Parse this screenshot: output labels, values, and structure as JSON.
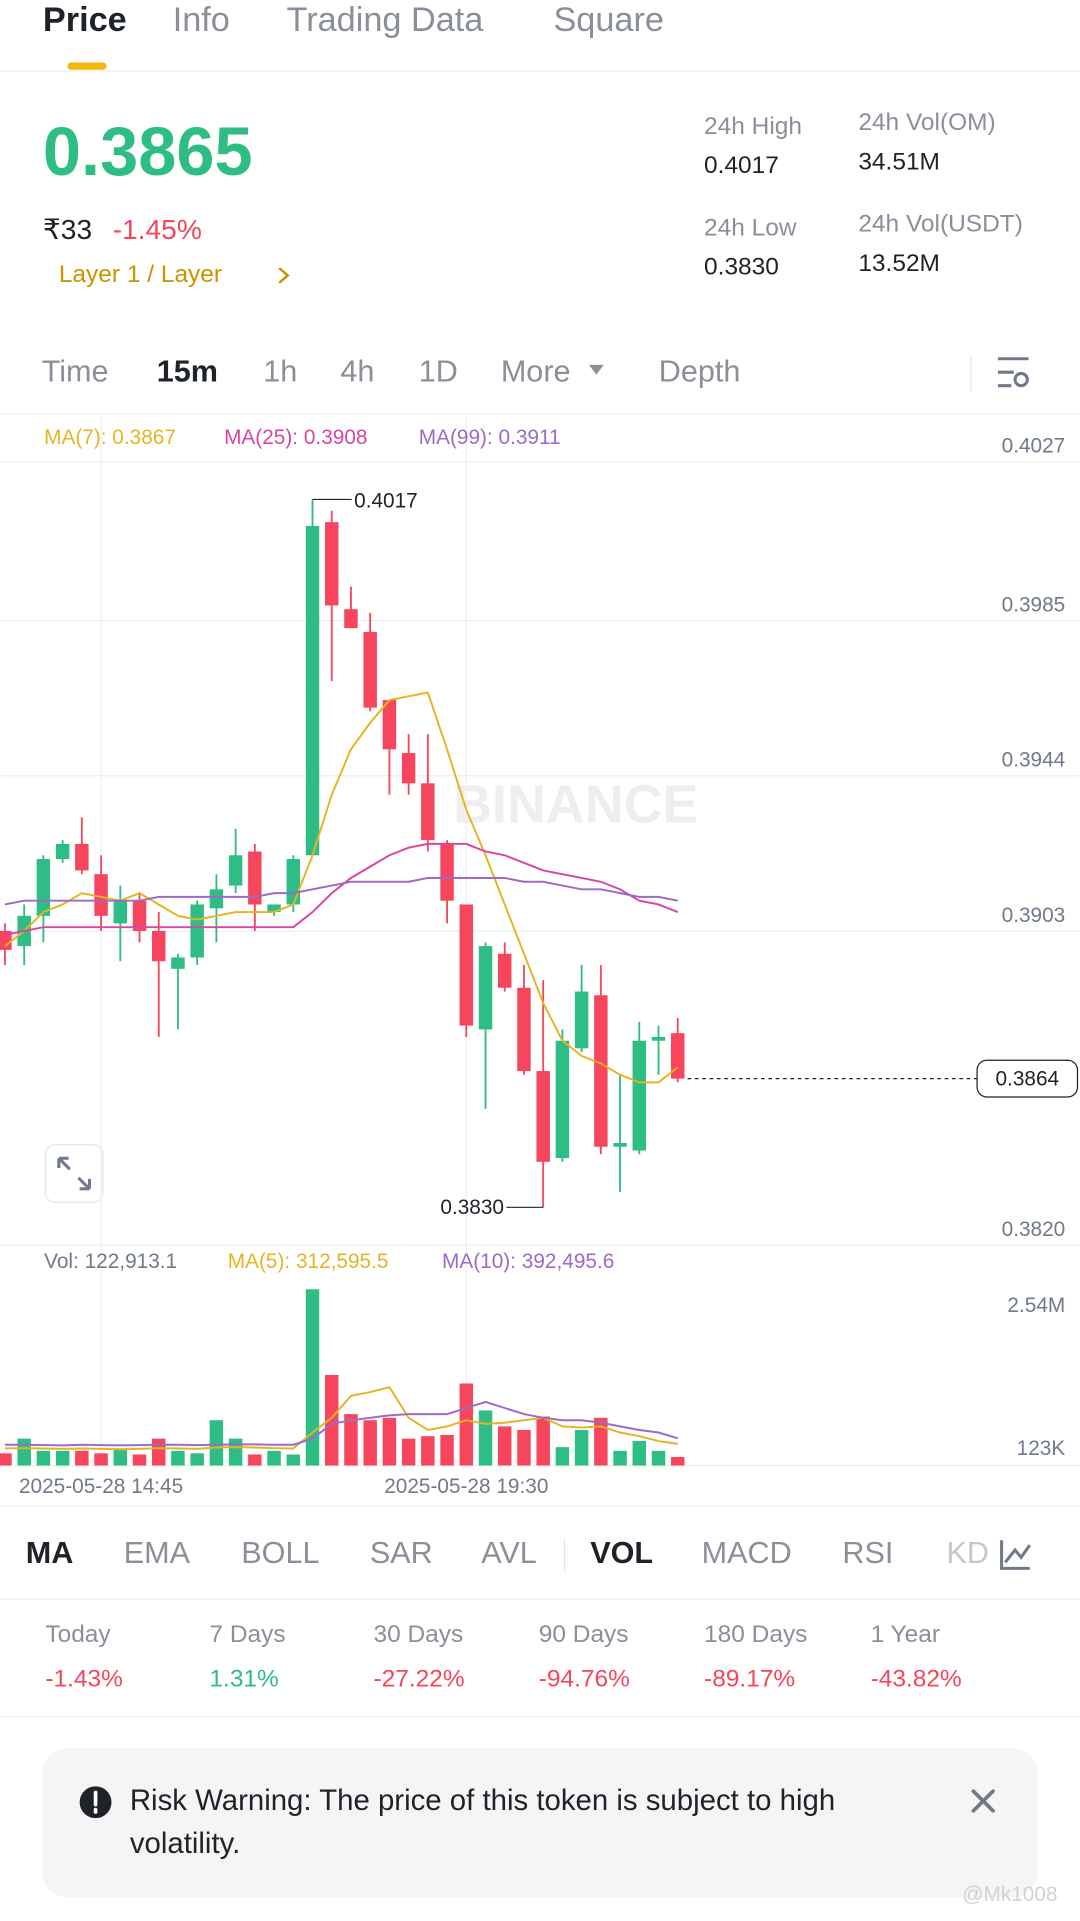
{
  "tabs": [
    "Price",
    "Info",
    "Trading Data",
    "Square"
  ],
  "ticker": {
    "price": "0.3865",
    "fiat": "₹33",
    "change": "-1.45%",
    "tags": "Layer 1 / Layer"
  },
  "stats": [
    {
      "label": "24h High",
      "value": "0.4017"
    },
    {
      "label": "24h Vol(OM)",
      "value": "34.51M"
    },
    {
      "label": "24h Low",
      "value": "0.3830"
    },
    {
      "label": "24h Vol(USDT)",
      "value": "13.52M"
    }
  ],
  "intervals": [
    "Time",
    "15m",
    "1h",
    "4h",
    "1D",
    "More",
    "Depth"
  ],
  "watermark": "BINANCE",
  "chart_data": [
    {
      "type": "candlestick",
      "categories": [
        null,
        null,
        null,
        null,
        null,
        "2025-05-28 14:45",
        null,
        null,
        null,
        null,
        null,
        null,
        null,
        null,
        null,
        null,
        null,
        null,
        null,
        null,
        null,
        null,
        null,
        null,
        "2025-05-28 19:30",
        null,
        null,
        null,
        null,
        null,
        null,
        null,
        null,
        null,
        null,
        null
      ],
      "open": [
        0.3903,
        0.3899,
        0.3907,
        0.3922,
        0.3926,
        0.3918,
        0.3905,
        0.3911,
        0.3903,
        0.3893,
        0.3896,
        0.3909,
        0.3915,
        0.3924,
        0.3908,
        0.391,
        0.3923,
        0.4011,
        0.3988,
        0.3982,
        0.3964,
        0.395,
        0.3942,
        0.3926,
        0.391,
        0.3877,
        0.3897,
        0.3888,
        0.3866,
        0.3843,
        0.3872,
        0.3886,
        0.3846,
        0.3845,
        0.3874,
        0.3876
      ],
      "high": [
        0.3905,
        0.391,
        0.3923,
        0.3927,
        0.3933,
        0.3923,
        0.3915,
        0.3913,
        0.3908,
        0.3897,
        0.3911,
        0.3918,
        0.393,
        0.3926,
        0.391,
        0.3923,
        0.4017,
        0.4014,
        0.3994,
        0.3987,
        0.3964,
        0.3955,
        0.3955,
        0.3927,
        0.391,
        0.39,
        0.39,
        0.3894,
        0.389,
        0.3877,
        0.3894,
        0.3894,
        0.3865,
        0.3879,
        0.3878,
        0.388
      ],
      "low": [
        0.3894,
        0.3894,
        0.39,
        0.3921,
        0.3918,
        0.3903,
        0.3895,
        0.39,
        0.3875,
        0.3877,
        0.3894,
        0.39,
        0.3913,
        0.3903,
        0.3907,
        0.3908,
        0.3923,
        0.3969,
        0.3983,
        0.3961,
        0.3939,
        0.3939,
        0.3924,
        0.3905,
        0.3875,
        0.3856,
        0.3887,
        0.3865,
        0.383,
        0.3842,
        0.3871,
        0.3844,
        0.3834,
        0.3844,
        0.3865,
        0.3863
      ],
      "close": [
        0.3898,
        0.3907,
        0.3922,
        0.3926,
        0.3919,
        0.3907,
        0.3911,
        0.3903,
        0.3895,
        0.3896,
        0.391,
        0.3914,
        0.3923,
        0.391,
        0.391,
        0.3922,
        0.401,
        0.3989,
        0.3983,
        0.3962,
        0.3951,
        0.3942,
        0.3927,
        0.3911,
        0.3878,
        0.3899,
        0.3888,
        0.3866,
        0.3842,
        0.3874,
        0.3887,
        0.3846,
        0.3847,
        0.3874,
        0.3875,
        0.3864
      ],
      "up_color": "#2ebd85",
      "down_color": "#f6465d",
      "series": [
        {
          "name": "MA(7): 0.3867",
          "color": "#e6b422",
          "values": [
            0.3899,
            0.3903,
            0.3908,
            0.391,
            0.3913,
            0.3912,
            0.3911,
            0.3913,
            0.391,
            0.3907,
            0.3906,
            0.3907,
            0.3908,
            0.3908,
            0.3908,
            0.391,
            0.3923,
            0.3939,
            0.3951,
            0.3958,
            0.3964,
            0.3965,
            0.3966,
            0.3951,
            0.3935,
            0.3923,
            0.391,
            0.3897,
            0.3884,
            0.3874,
            0.387,
            0.3868,
            0.3865,
            0.3863,
            0.3863,
            0.3867
          ]
        },
        {
          "name": "MA(25): 0.3908",
          "color": "#d9469f",
          "values": [
            0.3902,
            0.3903,
            0.3904,
            0.3904,
            0.3904,
            0.3904,
            0.3904,
            0.3904,
            0.3904,
            0.3904,
            0.3904,
            0.3904,
            0.3904,
            0.3904,
            0.3904,
            0.3904,
            0.3908,
            0.3913,
            0.3917,
            0.392,
            0.3923,
            0.3925,
            0.3926,
            0.3926,
            0.3926,
            0.3924,
            0.3923,
            0.3921,
            0.3919,
            0.3918,
            0.3917,
            0.3916,
            0.3914,
            0.3911,
            0.391,
            0.3908
          ]
        },
        {
          "name": "MA(99): 0.3911",
          "color": "#9b6bc6",
          "values": [
            0.391,
            0.3911,
            0.3911,
            0.3911,
            0.3911,
            0.3911,
            0.3911,
            0.3911,
            0.3912,
            0.3912,
            0.3912,
            0.3912,
            0.3912,
            0.3912,
            0.3913,
            0.3913,
            0.3914,
            0.3915,
            0.3916,
            0.3916,
            0.3916,
            0.3916,
            0.3917,
            0.3917,
            0.3917,
            0.3917,
            0.3917,
            0.3916,
            0.3916,
            0.3915,
            0.3914,
            0.3914,
            0.3913,
            0.3912,
            0.3912,
            0.3911
          ]
        }
      ],
      "ylim": [
        0.382,
        0.4027
      ],
      "yticks": [
        {
          "value": 0.382,
          "label": "0.3820"
        },
        0.3903,
        0.3944,
        0.3985,
        0.4027
      ],
      "grid": true,
      "annotations": [
        {
          "value": 0.4017,
          "label": "0.4017"
        },
        {
          "value": 0.383,
          "label": "0.3830"
        }
      ],
      "last_price": 0.3864
    },
    {
      "type": "bar",
      "series": [
        {
          "name": "Vol: 122,913.1",
          "values": [
            176000,
            388000,
            212000,
            212000,
            212000,
            176000,
            247000,
            159000,
            388000,
            212000,
            176000,
            653000,
            388000,
            159000,
            212000,
            159000,
            2540000,
            1305000,
            741000,
            653000,
            688000,
            388000,
            423000,
            441000,
            1182000,
            794000,
            564000,
            512000,
            706000,
            265000,
            512000,
            688000,
            212000,
            353000,
            212000,
            122913.1
          ]
        },
        {
          "name": "MA(5): 312,595.5",
          "color": "#e6b422",
          "values": [
            247000,
            250000,
            245000,
            240000,
            245000,
            240000,
            235000,
            240000,
            250000,
            245000,
            240000,
            260000,
            265000,
            260000,
            250000,
            245000,
            476000,
            688000,
            1005000,
            1058000,
            1129000,
            688000,
            512000,
            564000,
            653000,
            600000,
            617000,
            653000,
            688000,
            564000,
            547000,
            564000,
            476000,
            423000,
            353000,
            312595.5
          ]
        },
        {
          "name": "MA(10): 392,495.6",
          "color": "#9b6bc6",
          "values": [
            300000,
            300000,
            295000,
            290000,
            300000,
            295000,
            290000,
            295000,
            300000,
            300000,
            295000,
            300000,
            305000,
            305000,
            300000,
            300000,
            388000,
            600000,
            653000,
            688000,
            723000,
            741000,
            741000,
            741000,
            829000,
            917000,
            829000,
            741000,
            688000,
            653000,
            653000,
            617000,
            564000,
            512000,
            476000,
            392495.6
          ]
        }
      ],
      "ylim": [
        0,
        2540000
      ],
      "yticks": [
        {
          "value": 123000,
          "label": "123K"
        },
        {
          "value": 2540000,
          "label": "2.54M"
        }
      ]
    }
  ],
  "indicators": [
    "MA",
    "EMA",
    "BOLL",
    "SAR",
    "AVL",
    "VOL",
    "MACD",
    "RSI",
    "KD"
  ],
  "performance": [
    {
      "period": "Today",
      "change": "-1.43%"
    },
    {
      "period": "7 Days",
      "change": "1.31%"
    },
    {
      "period": "30 Days",
      "change": "-27.22%"
    },
    {
      "period": "90 Days",
      "change": "-94.76%"
    },
    {
      "period": "180 Days",
      "change": "-89.17%"
    },
    {
      "period": "1 Year",
      "change": "-43.82%"
    }
  ],
  "risk_warning": [
    "Risk Warning: The price of this token is subject to high",
    "volatility."
  ],
  "credit": "@Mk1008"
}
